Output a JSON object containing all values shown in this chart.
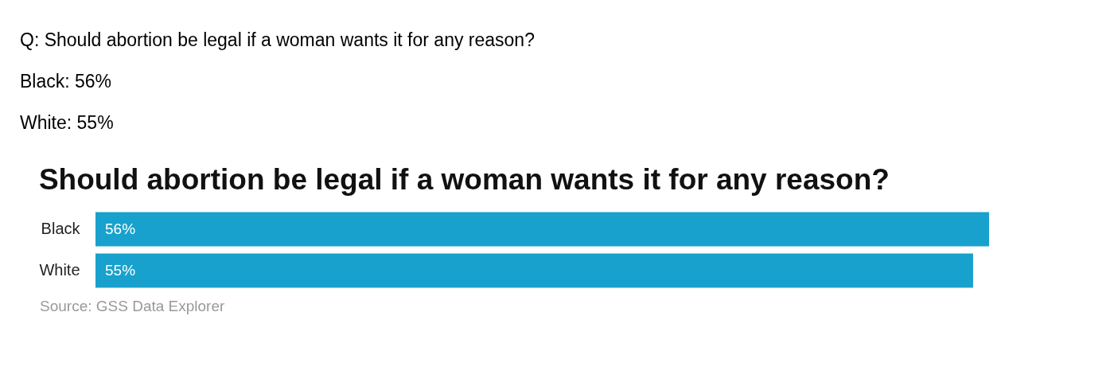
{
  "chart_data": {
    "type": "bar",
    "orientation": "horizontal",
    "title": "Should abortion be legal if a woman wants it for any reason?",
    "categories": [
      "Black",
      "White"
    ],
    "series": [
      {
        "color": "#18a1cd",
        "values": [
          56,
          55
        ],
        "value_labels": [
          "56%",
          "55%"
        ]
      }
    ],
    "annotations": [
      "Q: Should abortion be legal if a woman wants it for any reason?",
      "Black: 56%",
      "White: 55%",
      "Source: GSS Data Explorer"
    ]
  }
}
